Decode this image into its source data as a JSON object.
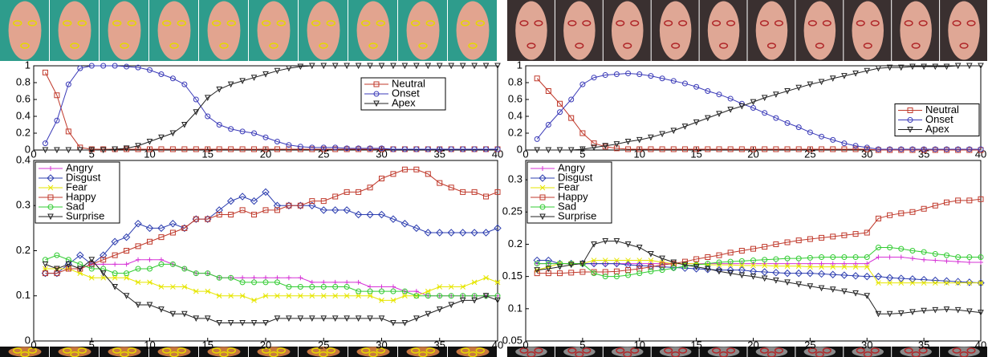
{
  "chart_data": [
    {
      "type": "line",
      "xlim": [
        0,
        40
      ],
      "ylim": [
        0,
        1
      ],
      "xticks": [
        0,
        5,
        10,
        15,
        20,
        25,
        30,
        35,
        40
      ],
      "yticks": [
        0,
        0.2,
        0.4,
        0.6,
        0.8,
        1
      ],
      "legend": "upper right",
      "x": [
        1,
        2,
        3,
        4,
        5,
        6,
        7,
        8,
        9,
        10,
        11,
        12,
        13,
        14,
        15,
        16,
        17,
        18,
        19,
        20,
        21,
        22,
        23,
        24,
        25,
        26,
        27,
        28,
        29,
        30,
        31,
        32,
        33,
        34,
        35,
        36,
        37,
        38,
        39,
        40
      ],
      "series": [
        {
          "name": "Neutral",
          "color": "#c0392b",
          "marker": "square",
          "values": [
            0.92,
            0.65,
            0.22,
            0.03,
            0.01,
            0.01,
            0.01,
            0.01,
            0.01,
            0.01,
            0.01,
            0.01,
            0.01,
            0.01,
            0.01,
            0.01,
            0.01,
            0.01,
            0.01,
            0.01,
            0.01,
            0.01,
            0.01,
            0.01,
            0.01,
            0.01,
            0.01,
            0.01,
            0.01,
            0.01,
            0.01,
            0.01,
            0.01,
            0.01,
            0.01,
            0.01,
            0.01,
            0.01,
            0.01,
            0.01
          ]
        },
        {
          "name": "Onset",
          "color": "#3b3bb8",
          "marker": "circle",
          "values": [
            0.08,
            0.35,
            0.78,
            0.97,
            1,
            1,
            1,
            0.99,
            0.98,
            0.95,
            0.9,
            0.85,
            0.78,
            0.6,
            0.4,
            0.3,
            0.25,
            0.22,
            0.2,
            0.15,
            0.1,
            0.06,
            0.04,
            0.03,
            0.03,
            0.03,
            0.02,
            0.02,
            0.02,
            0.02,
            0.01,
            0.01,
            0.01,
            0.01,
            0.01,
            0.01,
            0.01,
            0.01,
            0.01,
            0.01
          ]
        },
        {
          "name": "Apex",
          "color": "#222222",
          "marker": "tri",
          "values": [
            0,
            0,
            0,
            0,
            0,
            0,
            0.01,
            0.02,
            0.05,
            0.1,
            0.15,
            0.2,
            0.3,
            0.45,
            0.62,
            0.72,
            0.78,
            0.82,
            0.86,
            0.9,
            0.94,
            0.97,
            0.99,
            1,
            1,
            1,
            1,
            1,
            1,
            1,
            1,
            1,
            1,
            1,
            1,
            1,
            1,
            1,
            1,
            1
          ]
        }
      ]
    },
    {
      "type": "line",
      "xlim": [
        0,
        40
      ],
      "ylim": [
        0,
        1
      ],
      "xticks": [
        0,
        5,
        10,
        15,
        20,
        25,
        30,
        35,
        40
      ],
      "yticks": [
        0,
        0.2,
        0.4,
        0.6,
        0.8,
        1
      ],
      "legend": "center right",
      "x": [
        1,
        2,
        3,
        4,
        5,
        6,
        7,
        8,
        9,
        10,
        11,
        12,
        13,
        14,
        15,
        16,
        17,
        18,
        19,
        20,
        21,
        22,
        23,
        24,
        25,
        26,
        27,
        28,
        29,
        30,
        31,
        32,
        33,
        34,
        35,
        36,
        37,
        38,
        39,
        40
      ],
      "series": [
        {
          "name": "Neutral",
          "color": "#c0392b",
          "marker": "square",
          "values": [
            0.85,
            0.7,
            0.55,
            0.38,
            0.2,
            0.08,
            0.04,
            0.02,
            0.01,
            0.01,
            0.01,
            0.01,
            0.01,
            0.01,
            0.01,
            0.01,
            0.01,
            0.01,
            0.01,
            0.01,
            0.01,
            0.01,
            0.01,
            0.01,
            0.01,
            0.01,
            0.01,
            0.01,
            0.01,
            0.01,
            0,
            0,
            0,
            0,
            0,
            0,
            0,
            0,
            0,
            0
          ]
        },
        {
          "name": "Onset",
          "color": "#3b3bb8",
          "marker": "circle",
          "values": [
            0.13,
            0.3,
            0.45,
            0.6,
            0.78,
            0.86,
            0.89,
            0.9,
            0.91,
            0.9,
            0.88,
            0.85,
            0.82,
            0.79,
            0.75,
            0.7,
            0.66,
            0.61,
            0.55,
            0.5,
            0.44,
            0.38,
            0.32,
            0.27,
            0.21,
            0.16,
            0.12,
            0.08,
            0.05,
            0.03,
            0.01,
            0.01,
            0.01,
            0.01,
            0.01,
            0.01,
            0.01,
            0.01,
            0.01,
            0.01
          ]
        },
        {
          "name": "Apex",
          "color": "#222222",
          "marker": "tri",
          "values": [
            0,
            0,
            0,
            0,
            0.01,
            0.03,
            0.05,
            0.07,
            0.1,
            0.12,
            0.15,
            0.19,
            0.23,
            0.28,
            0.33,
            0.38,
            0.43,
            0.48,
            0.52,
            0.57,
            0.62,
            0.66,
            0.7,
            0.74,
            0.78,
            0.81,
            0.85,
            0.88,
            0.91,
            0.94,
            0.97,
            0.98,
            0.98,
            0.99,
            0.99,
            0.99,
            0.99,
            1,
            1,
            1
          ]
        }
      ]
    },
    {
      "type": "line",
      "xlim": [
        0,
        40
      ],
      "ylim": [
        0,
        0.4
      ],
      "xticks": [
        0,
        5,
        10,
        15,
        20,
        25,
        30,
        35,
        40
      ],
      "yticks": [
        0,
        0.1,
        0.2,
        0.3,
        0.4
      ],
      "legend": "upper left",
      "x": [
        1,
        2,
        3,
        4,
        5,
        6,
        7,
        8,
        9,
        10,
        11,
        12,
        13,
        14,
        15,
        16,
        17,
        18,
        19,
        20,
        21,
        22,
        23,
        24,
        25,
        26,
        27,
        28,
        29,
        30,
        31,
        32,
        33,
        34,
        35,
        36,
        37,
        38,
        39,
        40
      ],
      "series": [
        {
          "name": "Angry",
          "color": "#d633d6",
          "marker": "plus",
          "values": [
            0.16,
            0.16,
            0.16,
            0.16,
            0.17,
            0.17,
            0.17,
            0.17,
            0.18,
            0.18,
            0.18,
            0.17,
            0.16,
            0.15,
            0.15,
            0.14,
            0.14,
            0.14,
            0.14,
            0.14,
            0.14,
            0.14,
            0.14,
            0.13,
            0.13,
            0.13,
            0.13,
            0.13,
            0.12,
            0.12,
            0.12,
            0.11,
            0.11,
            0.1,
            0.1,
            0.1,
            0.1,
            0.1,
            0.1,
            0.1
          ]
        },
        {
          "name": "Disgust",
          "color": "#2e3fb0",
          "marker": "diamond",
          "values": [
            0.15,
            0.15,
            0.17,
            0.19,
            0.17,
            0.19,
            0.22,
            0.23,
            0.26,
            0.25,
            0.25,
            0.26,
            0.25,
            0.27,
            0.27,
            0.29,
            0.31,
            0.32,
            0.31,
            0.33,
            0.3,
            0.3,
            0.3,
            0.3,
            0.29,
            0.29,
            0.29,
            0.28,
            0.28,
            0.28,
            0.27,
            0.26,
            0.25,
            0.24,
            0.24,
            0.24,
            0.24,
            0.24,
            0.24,
            0.25
          ]
        },
        {
          "name": "Fear",
          "color": "#e6e600",
          "marker": "star",
          "values": [
            0.16,
            0.16,
            0.16,
            0.15,
            0.14,
            0.14,
            0.14,
            0.14,
            0.13,
            0.13,
            0.12,
            0.12,
            0.12,
            0.11,
            0.11,
            0.1,
            0.1,
            0.1,
            0.09,
            0.1,
            0.1,
            0.1,
            0.1,
            0.1,
            0.1,
            0.1,
            0.1,
            0.1,
            0.1,
            0.09,
            0.09,
            0.1,
            0.1,
            0.11,
            0.12,
            0.12,
            0.12,
            0.13,
            0.14,
            0.13
          ]
        },
        {
          "name": "Happy",
          "color": "#c0392b",
          "marker": "square",
          "values": [
            0.15,
            0.15,
            0.16,
            0.16,
            0.17,
            0.18,
            0.19,
            0.2,
            0.21,
            0.22,
            0.23,
            0.24,
            0.25,
            0.27,
            0.27,
            0.28,
            0.28,
            0.29,
            0.28,
            0.29,
            0.29,
            0.3,
            0.3,
            0.31,
            0.31,
            0.32,
            0.33,
            0.33,
            0.34,
            0.36,
            0.37,
            0.38,
            0.38,
            0.37,
            0.35,
            0.34,
            0.33,
            0.33,
            0.32,
            0.33
          ]
        },
        {
          "name": "Sad",
          "color": "#33cc33",
          "marker": "circle",
          "values": [
            0.18,
            0.19,
            0.18,
            0.17,
            0.16,
            0.16,
            0.15,
            0.15,
            0.16,
            0.16,
            0.17,
            0.17,
            0.16,
            0.15,
            0.15,
            0.14,
            0.14,
            0.13,
            0.13,
            0.13,
            0.13,
            0.12,
            0.12,
            0.12,
            0.12,
            0.12,
            0.12,
            0.11,
            0.11,
            0.11,
            0.11,
            0.11,
            0.1,
            0.1,
            0.1,
            0.1,
            0.1,
            0.1,
            0.1,
            0.1
          ]
        },
        {
          "name": "Surprise",
          "color": "#222222",
          "marker": "tri",
          "values": [
            0.17,
            0.16,
            0.17,
            0.16,
            0.18,
            0.15,
            0.12,
            0.1,
            0.08,
            0.08,
            0.07,
            0.06,
            0.06,
            0.05,
            0.05,
            0.04,
            0.04,
            0.04,
            0.04,
            0.04,
            0.05,
            0.05,
            0.05,
            0.05,
            0.05,
            0.05,
            0.05,
            0.05,
            0.05,
            0.05,
            0.04,
            0.04,
            0.05,
            0.06,
            0.07,
            0.08,
            0.09,
            0.09,
            0.1,
            0.09
          ]
        }
      ]
    },
    {
      "type": "line",
      "xlim": [
        0,
        40
      ],
      "ylim": [
        0.05,
        0.33
      ],
      "xticks": [
        0,
        5,
        10,
        15,
        20,
        25,
        30,
        35,
        40
      ],
      "yticks": [
        0.05,
        0.1,
        0.15,
        0.2,
        0.25,
        0.3
      ],
      "legend": "upper left",
      "x": [
        1,
        2,
        3,
        4,
        5,
        6,
        7,
        8,
        9,
        10,
        11,
        12,
        13,
        14,
        15,
        16,
        17,
        18,
        19,
        20,
        21,
        22,
        23,
        24,
        25,
        26,
        27,
        28,
        29,
        30,
        31,
        32,
        33,
        34,
        35,
        36,
        37,
        38,
        39,
        40
      ],
      "series": [
        {
          "name": "Angry",
          "color": "#d633d6",
          "marker": "plus",
          "values": [
            0.17,
            0.17,
            0.17,
            0.17,
            0.17,
            0.17,
            0.17,
            0.17,
            0.17,
            0.17,
            0.17,
            0.17,
            0.17,
            0.17,
            0.17,
            0.17,
            0.17,
            0.17,
            0.17,
            0.17,
            0.17,
            0.17,
            0.17,
            0.17,
            0.17,
            0.17,
            0.17,
            0.17,
            0.17,
            0.17,
            0.18,
            0.18,
            0.18,
            0.178,
            0.176,
            0.175,
            0.174,
            0.173,
            0.172,
            0.172
          ]
        },
        {
          "name": "Disgust",
          "color": "#2e3fb0",
          "marker": "diamond",
          "values": [
            0.175,
            0.175,
            0.17,
            0.17,
            0.17,
            0.17,
            0.17,
            0.17,
            0.168,
            0.167,
            0.166,
            0.165,
            0.164,
            0.163,
            0.162,
            0.161,
            0.16,
            0.16,
            0.16,
            0.158,
            0.157,
            0.156,
            0.155,
            0.155,
            0.155,
            0.154,
            0.153,
            0.152,
            0.151,
            0.15,
            0.15,
            0.148,
            0.147,
            0.146,
            0.145,
            0.144,
            0.143,
            0.142,
            0.141,
            0.14
          ]
        },
        {
          "name": "Fear",
          "color": "#e6e600",
          "marker": "star",
          "values": [
            0.16,
            0.165,
            0.17,
            0.17,
            0.17,
            0.175,
            0.175,
            0.175,
            0.175,
            0.175,
            0.175,
            0.172,
            0.17,
            0.17,
            0.17,
            0.168,
            0.168,
            0.168,
            0.167,
            0.167,
            0.167,
            0.166,
            0.166,
            0.166,
            0.165,
            0.165,
            0.165,
            0.165,
            0.165,
            0.165,
            0.14,
            0.14,
            0.14,
            0.14,
            0.14,
            0.14,
            0.14,
            0.14,
            0.14,
            0.14
          ]
        },
        {
          "name": "Happy",
          "color": "#c0392b",
          "marker": "square",
          "values": [
            0.155,
            0.155,
            0.155,
            0.156,
            0.157,
            0.157,
            0.157,
            0.158,
            0.16,
            0.162,
            0.165,
            0.168,
            0.17,
            0.173,
            0.177,
            0.18,
            0.183,
            0.187,
            0.19,
            0.193,
            0.196,
            0.2,
            0.203,
            0.206,
            0.208,
            0.21,
            0.212,
            0.214,
            0.216,
            0.218,
            0.24,
            0.245,
            0.248,
            0.25,
            0.255,
            0.26,
            0.265,
            0.268,
            0.268,
            0.27
          ]
        },
        {
          "name": "Sad",
          "color": "#33cc33",
          "marker": "circle",
          "values": [
            0.17,
            0.17,
            0.17,
            0.17,
            0.17,
            0.155,
            0.15,
            0.15,
            0.152,
            0.155,
            0.158,
            0.16,
            0.163,
            0.166,
            0.168,
            0.17,
            0.172,
            0.173,
            0.174,
            0.175,
            0.176,
            0.177,
            0.178,
            0.178,
            0.179,
            0.18,
            0.18,
            0.18,
            0.18,
            0.18,
            0.195,
            0.195,
            0.193,
            0.19,
            0.188,
            0.185,
            0.183,
            0.18,
            0.18,
            0.18
          ]
        },
        {
          "name": "Surprise",
          "color": "#222222",
          "marker": "tri",
          "values": [
            0.16,
            0.162,
            0.165,
            0.168,
            0.17,
            0.2,
            0.205,
            0.205,
            0.2,
            0.195,
            0.185,
            0.178,
            0.172,
            0.168,
            0.165,
            0.162,
            0.158,
            0.155,
            0.152,
            0.15,
            0.147,
            0.144,
            0.141,
            0.138,
            0.135,
            0.132,
            0.13,
            0.127,
            0.124,
            0.12,
            0.092,
            0.092,
            0.093,
            0.095,
            0.097,
            0.098,
            0.099,
            0.098,
            0.096,
            0.094
          ]
        }
      ]
    }
  ]
}
